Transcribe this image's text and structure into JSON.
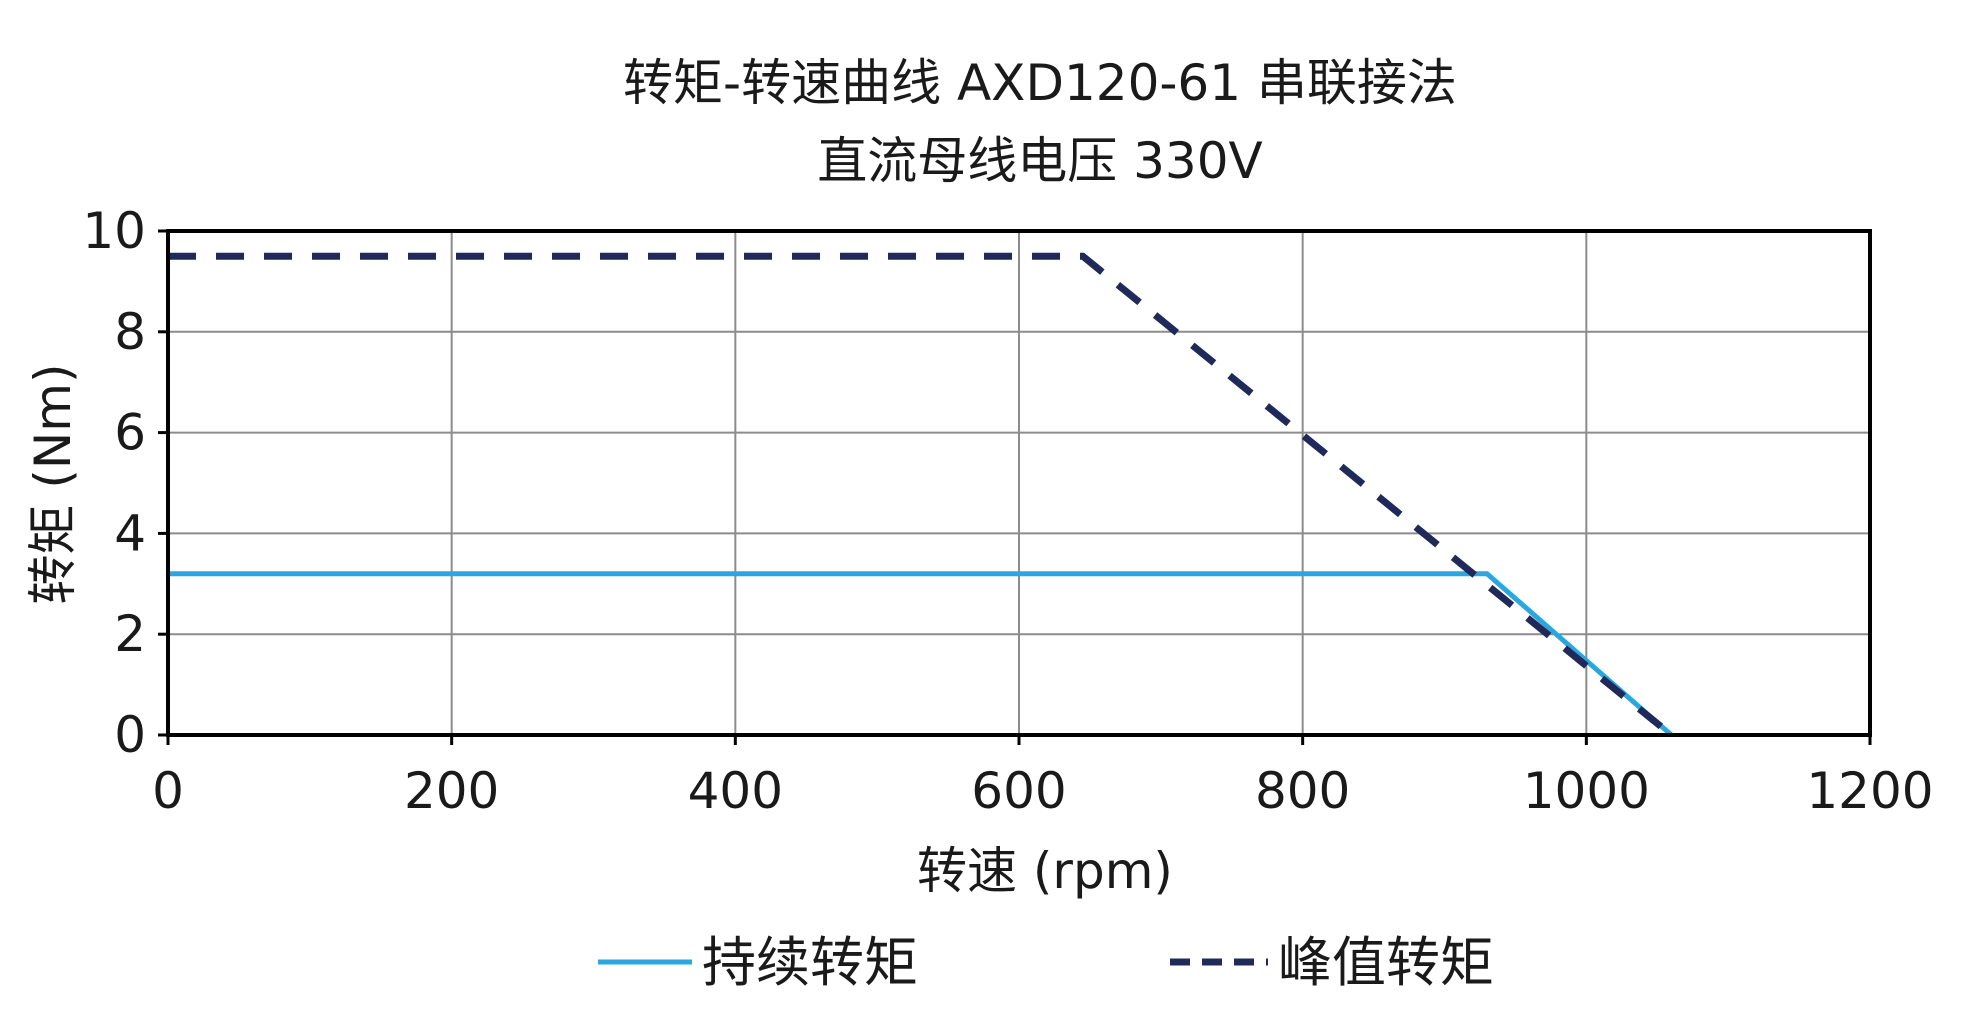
{
  "chart_data": {
    "type": "line",
    "title": "转矩-转速曲线 AXD120-61 串联接法",
    "subtitle": "直流母线电压 330V",
    "xlabel": "转速 (rpm)",
    "ylabel": "转矩 (Nm)",
    "xlim": [
      0,
      1200
    ],
    "ylim": [
      0,
      10
    ],
    "xticks": [
      "0",
      "200",
      "400",
      "600",
      "800",
      "1000",
      "1200"
    ],
    "yticks": [
      "0",
      "2",
      "4",
      "6",
      "8",
      "10"
    ],
    "grid": true,
    "legend_position": "bottom",
    "series": [
      {
        "name": "持续转矩",
        "style": "solid",
        "color": "#2aa7df",
        "x": [
          0,
          930,
          1060
        ],
        "y": [
          3.2,
          3.2,
          0
        ]
      },
      {
        "name": "峰值转矩",
        "style": "dashed",
        "color": "#1f2a5a",
        "x": [
          0,
          645,
          1060
        ],
        "y": [
          9.5,
          9.5,
          0
        ]
      }
    ]
  }
}
